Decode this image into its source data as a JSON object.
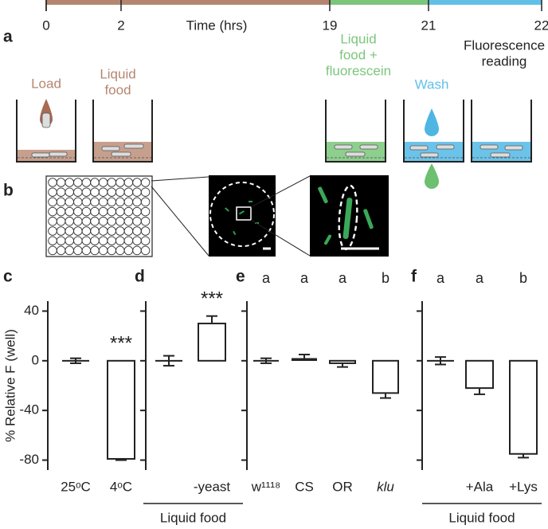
{
  "timeline": {
    "panel_label": "a",
    "axis_label": "Time (hrs)",
    "ticks": [
      0,
      2,
      19,
      21,
      22
    ],
    "segments": [
      {
        "color": "#b5866f"
      },
      {
        "color": "#7cc57d"
      },
      {
        "color": "#62c0e8"
      }
    ],
    "steps": [
      {
        "lines": [
          "Load"
        ],
        "color": "#b5866f"
      },
      {
        "lines": [
          "Liquid",
          "food"
        ],
        "color": "#b5866f"
      },
      {
        "lines": [
          "Liquid",
          "food +",
          "fluorescein"
        ],
        "color": "#7cc57d"
      },
      {
        "lines": [
          "Wash"
        ],
        "color": "#62c0e8"
      },
      {
        "lines": [
          "Fluorescence",
          "reading"
        ],
        "color": "#222222"
      }
    ]
  },
  "imaging": {
    "panel_label": "b"
  },
  "chart_data": [
    {
      "type": "bar",
      "panel_label": "c",
      "ylabel": "% Relative F (well)",
      "categories": [
        "25ᵒC",
        "4ᵒC"
      ],
      "values": [
        0,
        -79
      ],
      "errors": [
        2,
        1
      ],
      "annotation": "***",
      "ylim": [
        -88,
        48
      ],
      "yticks": [
        40,
        0,
        -40,
        -80
      ],
      "tick_labels": true
    },
    {
      "type": "bar",
      "panel_label": "d",
      "categories": [
        null,
        "-yeast"
      ],
      "values": [
        0,
        30
      ],
      "errors": [
        4,
        6
      ],
      "annotation": "***",
      "group_label": "Liquid food",
      "ylim": [
        -88,
        48
      ],
      "yticks": [
        40,
        0,
        -40,
        -80
      ],
      "tick_labels": false
    },
    {
      "type": "bar",
      "panel_label": "e",
      "categories": [
        "w¹¹¹⁸",
        "CS",
        "OR",
        "klu"
      ],
      "italic": [
        false,
        false,
        false,
        true
      ],
      "values": [
        0,
        1,
        -2,
        -26
      ],
      "errors": [
        2,
        4,
        3,
        4
      ],
      "letters": [
        "a",
        "a",
        "a",
        "b"
      ],
      "ylim": [
        -88,
        48
      ],
      "yticks": [
        40,
        0,
        -40,
        -80
      ],
      "tick_labels": false
    },
    {
      "type": "bar",
      "panel_label": "f",
      "categories": [
        null,
        "+Ala",
        "+Lys"
      ],
      "values": [
        0,
        -22,
        -75
      ],
      "errors": [
        3,
        5,
        3
      ],
      "letters": [
        "a",
        "a",
        "b"
      ],
      "group_label": "Liquid food",
      "ylim": [
        -88,
        48
      ],
      "yticks": [
        40,
        0,
        -40,
        -80
      ],
      "tick_labels": false
    }
  ]
}
